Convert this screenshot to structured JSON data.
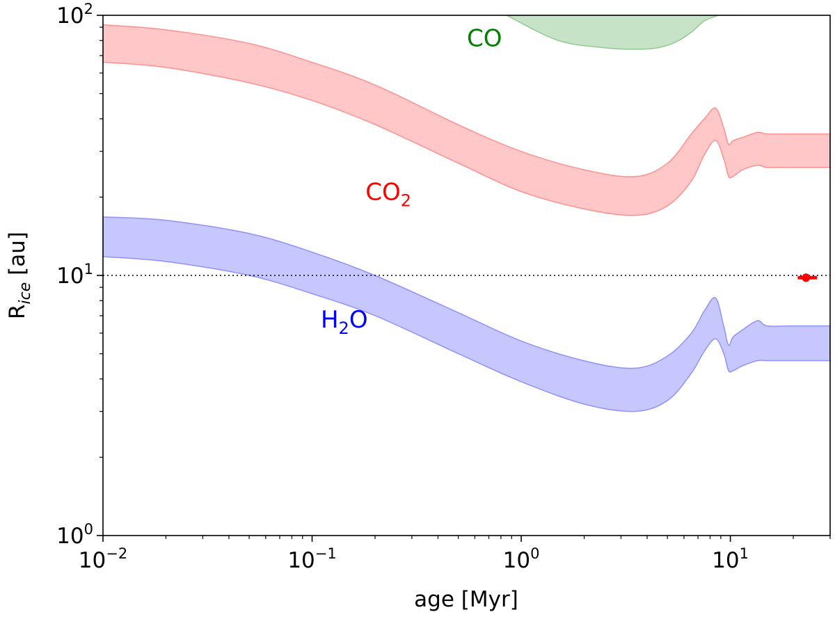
{
  "chart_data": {
    "type": "area",
    "x_scale": "log",
    "y_scale": "log",
    "xlim": [
      0.01,
      30
    ],
    "ylim": [
      1,
      100
    ],
    "xlabel": "age [Myr]",
    "ylabel": {
      "main": "R",
      "subscript": "ice",
      "unit": " [au]"
    },
    "x_ticks": [
      {
        "value": 0.01,
        "base": "10",
        "exp": "−2"
      },
      {
        "value": 0.1,
        "base": "10",
        "exp": "−1"
      },
      {
        "value": 1,
        "base": "10",
        "exp": "0"
      },
      {
        "value": 10,
        "base": "10",
        "exp": "1"
      }
    ],
    "y_ticks": [
      {
        "value": 1,
        "base": "10",
        "exp": "0"
      },
      {
        "value": 10,
        "base": "10",
        "exp": "1"
      },
      {
        "value": 100,
        "base": "10",
        "exp": "2"
      }
    ],
    "reference_line": {
      "y": 10,
      "style": "dotted",
      "color": "#000000"
    },
    "marker": {
      "x": 23,
      "y": 9.8,
      "xerr": [
        21,
        26
      ],
      "color": "#ff0000"
    },
    "series": [
      {
        "name": "H2O",
        "label_main": "H",
        "label_sub": "2",
        "label_tail": "O",
        "label_pos": {
          "x": 0.11,
          "y": 6.3
        },
        "label_color": "#0000ff",
        "fill": "#0000ff",
        "alpha": 0.22,
        "x": [
          0.01,
          0.02,
          0.05,
          0.1,
          0.2,
          0.5,
          1.0,
          2.0,
          3.5,
          5.0,
          6.5,
          7.5,
          8.5,
          9.3,
          9.8,
          10.3,
          11.5,
          13.5,
          15.0,
          20.0,
          30.0
        ],
        "upper": [
          16.8,
          16.3,
          14.5,
          12.3,
          10.0,
          7.2,
          5.6,
          4.7,
          4.4,
          4.9,
          6.0,
          7.3,
          8.2,
          6.4,
          5.4,
          5.8,
          6.2,
          6.7,
          6.4,
          6.4,
          6.4
        ],
        "lower": [
          11.8,
          11.3,
          10.0,
          8.5,
          7.0,
          5.0,
          3.9,
          3.2,
          3.0,
          3.3,
          4.2,
          5.1,
          5.7,
          5.0,
          4.3,
          4.3,
          4.5,
          4.7,
          4.7,
          4.7,
          4.7
        ]
      },
      {
        "name": "CO2",
        "label_main": "CO",
        "label_sub": "2",
        "label_tail": "",
        "label_pos": {
          "x": 0.18,
          "y": 19.5
        },
        "label_color": "#ff0000",
        "fill": "#ff0000",
        "alpha": 0.22,
        "x": [
          0.01,
          0.02,
          0.05,
          0.1,
          0.2,
          0.5,
          1.0,
          2.0,
          3.5,
          5.0,
          6.5,
          7.5,
          8.5,
          9.3,
          9.8,
          10.3,
          11.5,
          13.5,
          15.0,
          20.0,
          30.0
        ],
        "upper": [
          92,
          88,
          78,
          66,
          54,
          38,
          30,
          25.5,
          24,
          27,
          35,
          40,
          44,
          37,
          32,
          33,
          34,
          35.5,
          35,
          35,
          35
        ],
        "lower": [
          66,
          63,
          55,
          47,
          38,
          27,
          21,
          18,
          17,
          18.5,
          23,
          29,
          33,
          28,
          24,
          24,
          25.5,
          26.5,
          26,
          26,
          26
        ]
      },
      {
        "name": "CO",
        "label_main": "CO",
        "label_sub": "",
        "label_tail": "",
        "label_pos": {
          "x": 0.55,
          "y": 76
        },
        "label_color": "#008000",
        "fill": "#008000",
        "alpha": 0.22,
        "x": [
          0.85,
          1.2,
          2.0,
          3.5,
          5.0,
          6.5,
          7.0,
          7.5,
          8.5,
          9.0,
          9.3,
          9.6,
          10.0,
          10.3,
          10.6,
          11.0
        ],
        "upper": [
          100,
          100,
          100,
          100,
          100,
          100,
          100,
          100,
          100,
          100,
          100,
          100,
          100,
          100,
          100,
          100
        ],
        "lower": [
          100,
          95,
          91,
          92,
          100,
          100,
          100,
          100,
          100,
          100,
          100,
          100,
          95,
          97,
          100,
          100
        ],
        "lower_band_x": [
          0.85,
          1.5,
          2.5,
          3.5,
          4.5,
          5.5,
          6.5,
          7.5,
          8.5,
          8.8
        ],
        "lower_band_y": [
          100,
          80,
          75,
          74,
          75,
          79,
          86,
          95,
          99,
          100
        ]
      }
    ]
  }
}
